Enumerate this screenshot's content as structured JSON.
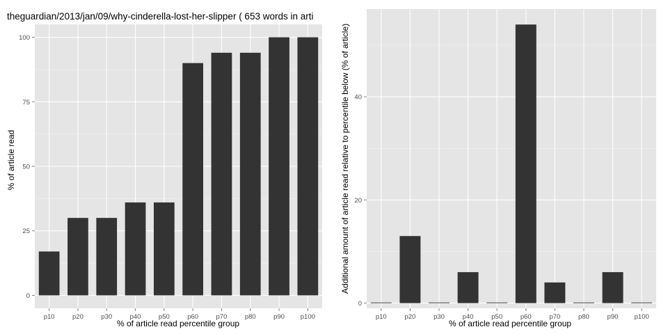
{
  "chart_data": [
    {
      "type": "bar",
      "title": "theguardian/2013/jan/09/why-cinderella-lost-her-slipper ( 653 words in arti",
      "xlabel": "% of article read percentile group",
      "ylabel": "% of article read",
      "categories": [
        "p10",
        "p20",
        "p30",
        "p40",
        "p50",
        "p60",
        "p70",
        "p80",
        "p90",
        "p100"
      ],
      "values": [
        17,
        30,
        30,
        36,
        36,
        90,
        94,
        94,
        100,
        100
      ],
      "ylim": [
        -5,
        105
      ],
      "yticks": [
        0,
        25,
        50,
        75,
        100
      ],
      "ytick_labels": [
        "0",
        "25",
        "50",
        "75",
        "100"
      ],
      "grid": true,
      "background": "#e5e5e5",
      "bar_color": "#333333"
    },
    {
      "type": "bar",
      "title": "",
      "xlabel": "% of article read percentile group",
      "ylabel": "Additional amount of article read relative to percentile below (% of article)",
      "categories": [
        "p10",
        "p20",
        "p30",
        "p40",
        "p50",
        "p60",
        "p70",
        "p80",
        "p90",
        "p100"
      ],
      "values": [
        0,
        13,
        0,
        6,
        0,
        54,
        4,
        0,
        6,
        0
      ],
      "ylim": [
        -1,
        57
      ],
      "yticks": [
        0,
        20,
        40
      ],
      "ytick_labels": [
        "0",
        "20",
        "40"
      ],
      "grid": true,
      "background": "#e5e5e5",
      "bar_color": "#333333"
    }
  ]
}
